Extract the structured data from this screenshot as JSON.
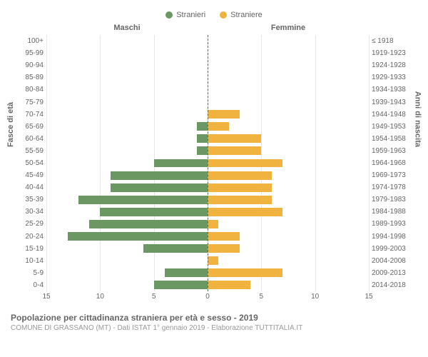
{
  "legend": {
    "male": {
      "label": "Stranieri",
      "color": "#6b9762"
    },
    "female": {
      "label": "Straniere",
      "color": "#f0b340"
    }
  },
  "headers": {
    "male": "Maschi",
    "female": "Femmine"
  },
  "axis_titles": {
    "left": "Fasce di età",
    "right": "Anni di nascita"
  },
  "chart": {
    "type": "population-pyramid",
    "xmax": 15,
    "xticks_left": [
      15,
      10,
      5,
      0
    ],
    "xticks_right": [
      0,
      5,
      10,
      15
    ],
    "grid_color": "#e6e6e6",
    "centerline_color": "#66665a",
    "bar_color_male": "#6b9762",
    "bar_color_female": "#f0b340",
    "background": "#ffffff",
    "rows": [
      {
        "age": "100+",
        "birth": "≤ 1918",
        "m": 0,
        "f": 0
      },
      {
        "age": "95-99",
        "birth": "1919-1923",
        "m": 0,
        "f": 0
      },
      {
        "age": "90-94",
        "birth": "1924-1928",
        "m": 0,
        "f": 0
      },
      {
        "age": "85-89",
        "birth": "1929-1933",
        "m": 0,
        "f": 0
      },
      {
        "age": "80-84",
        "birth": "1934-1938",
        "m": 0,
        "f": 0
      },
      {
        "age": "75-79",
        "birth": "1939-1943",
        "m": 0,
        "f": 0
      },
      {
        "age": "70-74",
        "birth": "1944-1948",
        "m": 0,
        "f": 3
      },
      {
        "age": "65-69",
        "birth": "1949-1953",
        "m": 1,
        "f": 2
      },
      {
        "age": "60-64",
        "birth": "1954-1958",
        "m": 1,
        "f": 5
      },
      {
        "age": "55-59",
        "birth": "1959-1963",
        "m": 1,
        "f": 5
      },
      {
        "age": "50-54",
        "birth": "1964-1968",
        "m": 5,
        "f": 7
      },
      {
        "age": "45-49",
        "birth": "1969-1973",
        "m": 9,
        "f": 6
      },
      {
        "age": "40-44",
        "birth": "1974-1978",
        "m": 9,
        "f": 6
      },
      {
        "age": "35-39",
        "birth": "1979-1983",
        "m": 12,
        "f": 6
      },
      {
        "age": "30-34",
        "birth": "1984-1988",
        "m": 10,
        "f": 7
      },
      {
        "age": "25-29",
        "birth": "1989-1993",
        "m": 11,
        "f": 1
      },
      {
        "age": "20-24",
        "birth": "1994-1998",
        "m": 13,
        "f": 3
      },
      {
        "age": "15-19",
        "birth": "1999-2003",
        "m": 6,
        "f": 3
      },
      {
        "age": "10-14",
        "birth": "2004-2008",
        "m": 0,
        "f": 1
      },
      {
        "age": "5-9",
        "birth": "2009-2013",
        "m": 4,
        "f": 7
      },
      {
        "age": "0-4",
        "birth": "2014-2018",
        "m": 5,
        "f": 4
      }
    ]
  },
  "footer": {
    "title": "Popolazione per cittadinanza straniera per età e sesso - 2019",
    "sub": "COMUNE DI GRASSANO (MT) - Dati ISTAT 1° gennaio 2019 - Elaborazione TUTTITALIA.IT"
  }
}
